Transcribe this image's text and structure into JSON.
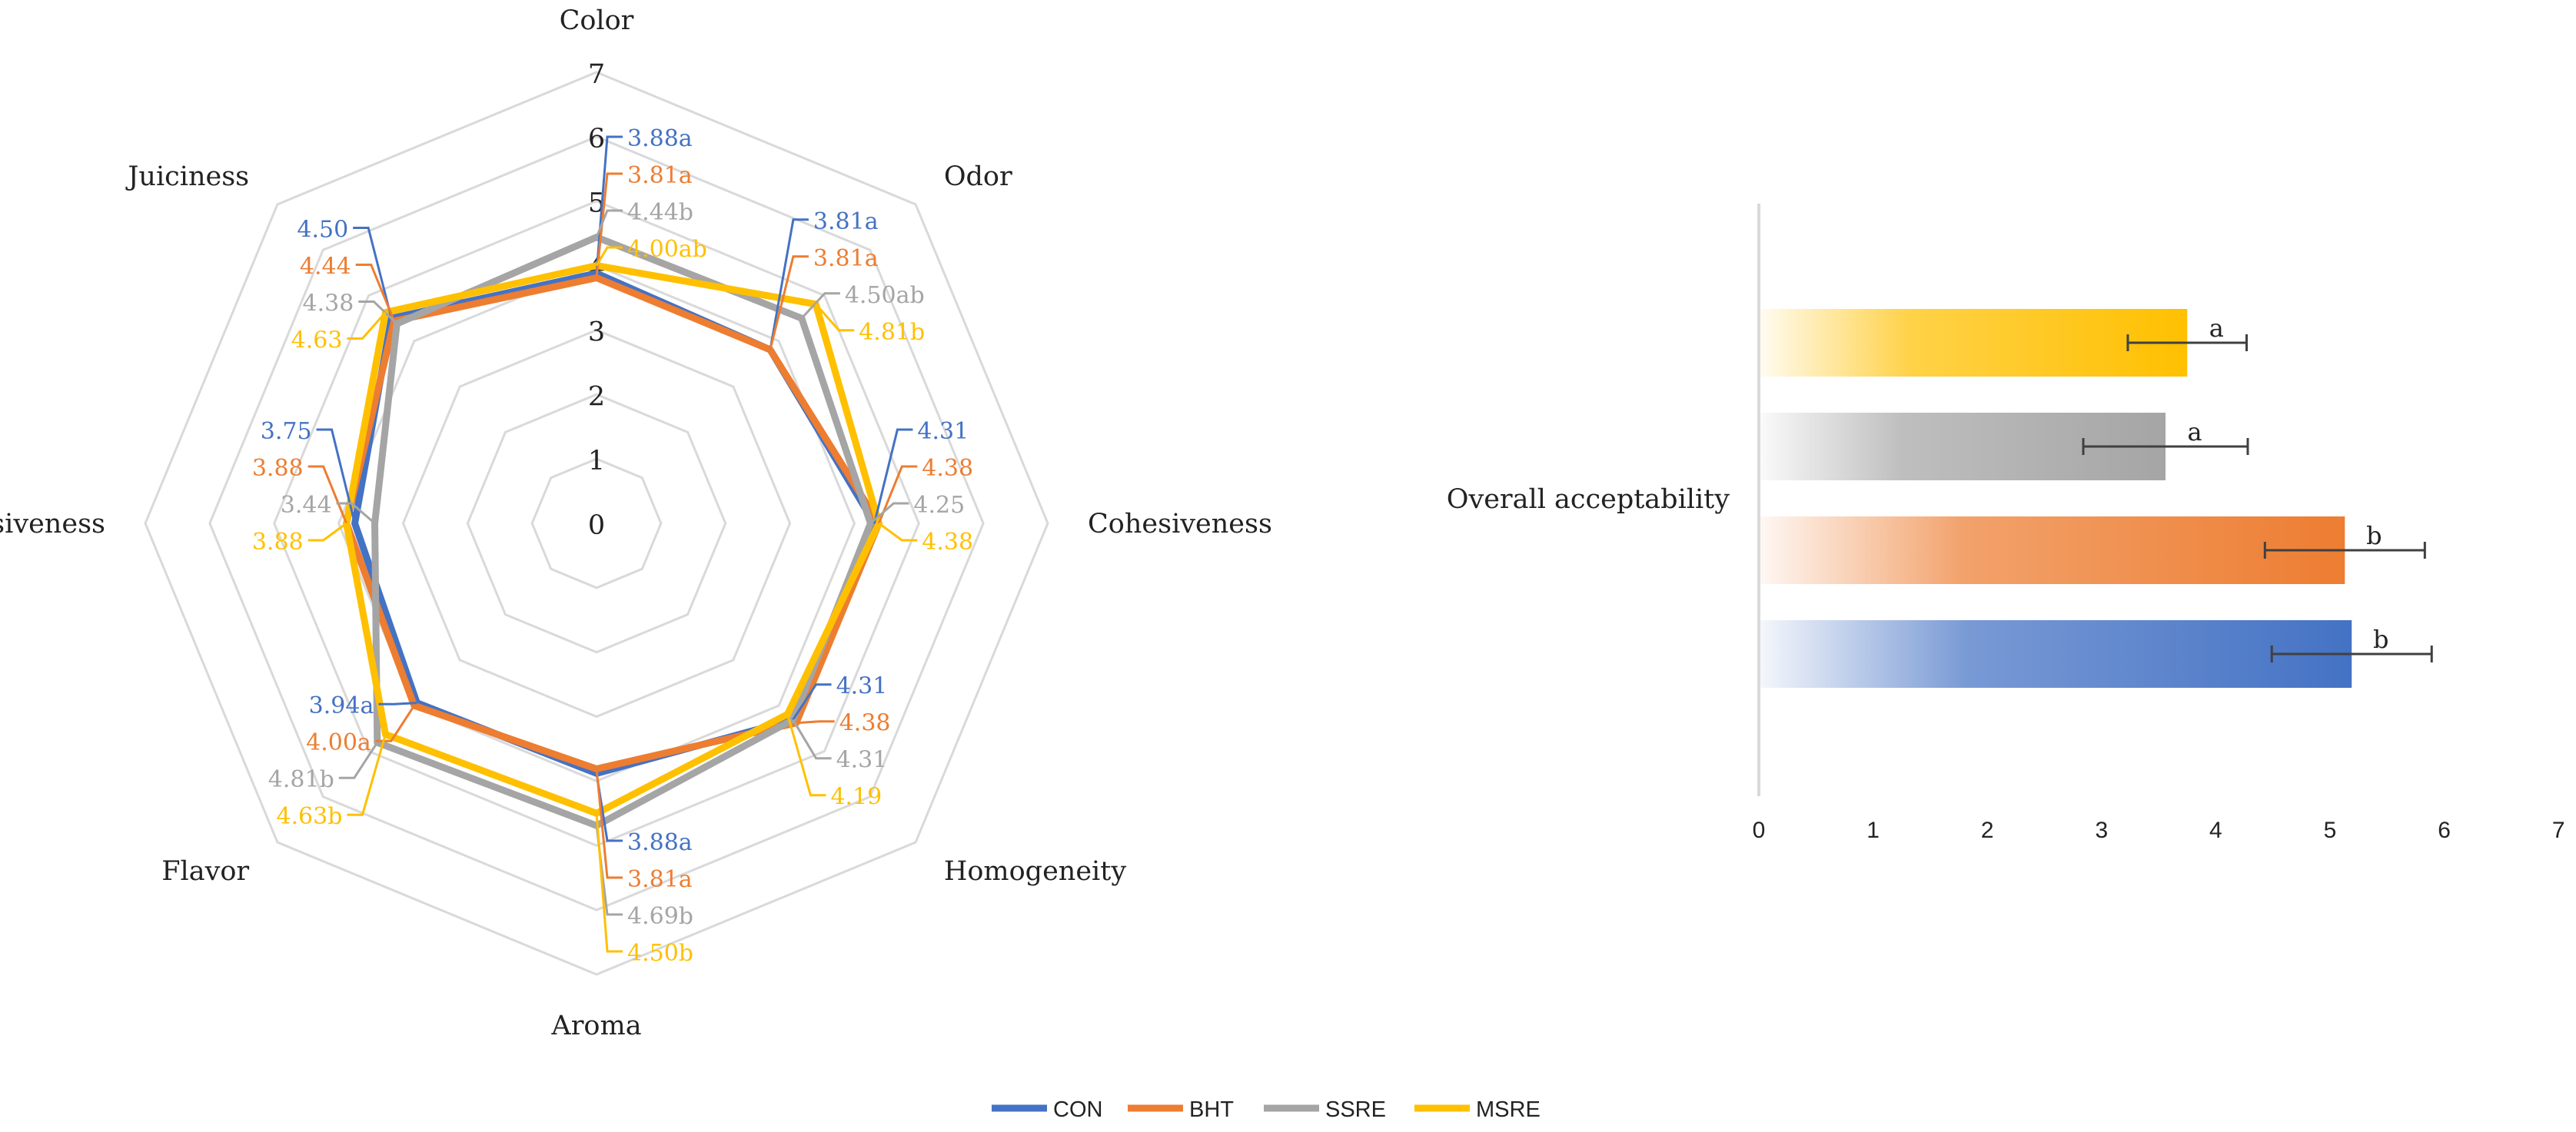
{
  "legend": [
    "CON",
    "BHT",
    "SSRE",
    "MSRE"
  ],
  "colors": {
    "CON": "#4472C4",
    "BHT": "#ED7D31",
    "SSRE": "#A5A5A5",
    "MSRE": "#FFC000",
    "grid": "#D9D9D9",
    "axis": "#BFBFBF",
    "text": "#222222",
    "errorbar": "#404040"
  },
  "chart_data": [
    {
      "type": "radar",
      "axes": [
        "Color",
        "Odor",
        "Cohesiveness",
        "Homogeneity",
        "Aroma",
        "Flavor",
        "Adhesiveness",
        "Juiciness"
      ],
      "rlim": [
        0,
        7
      ],
      "ticks": [
        "0",
        "1",
        "2",
        "3",
        "4",
        "5",
        "6",
        "7"
      ],
      "grid": true,
      "legend_position": "bottom",
      "series": [
        {
          "name": "CON",
          "values": [
            3.88,
            3.81,
            4.31,
            4.31,
            3.88,
            3.94,
            3.75,
            4.5
          ],
          "labels": [
            "3.88a",
            "3.81a",
            "4.31",
            "4.31",
            "3.88a",
            "3.94a",
            "3.75",
            "4.50"
          ]
        },
        {
          "name": "BHT",
          "values": [
            3.81,
            3.81,
            4.38,
            4.38,
            3.81,
            4.0,
            3.88,
            4.44
          ],
          "labels": [
            "3.81a",
            "3.81a",
            "4.38",
            "4.38",
            "3.81a",
            "4.00a",
            "3.88",
            "4.44"
          ]
        },
        {
          "name": "SSRE",
          "values": [
            4.44,
            4.5,
            4.25,
            4.31,
            4.69,
            4.81,
            3.44,
            4.38
          ],
          "labels": [
            "4.44b",
            "4.50ab",
            "4.25",
            "4.31",
            "4.69b",
            "4.81b",
            "3.44",
            "4.38"
          ]
        },
        {
          "name": "MSRE",
          "values": [
            4.0,
            4.81,
            4.38,
            4.19,
            4.5,
            4.63,
            3.88,
            4.63
          ],
          "labels": [
            "4.00ab",
            "4.81b",
            "4.38",
            "4.19",
            "4.50b",
            "4.63b",
            "3.88",
            "4.63"
          ]
        }
      ]
    },
    {
      "type": "bar",
      "orientation": "horizontal",
      "category_label": "Overall acceptability",
      "xlim": [
        0,
        7
      ],
      "ticks": [
        "0",
        "1",
        "2",
        "3",
        "4",
        "5",
        "6",
        "7"
      ],
      "series": [
        {
          "name": "MSRE",
          "value": 3.75,
          "error": 0.52,
          "letter": "a"
        },
        {
          "name": "SSRE",
          "value": 3.56,
          "error": 0.72,
          "letter": "a"
        },
        {
          "name": "BHT",
          "value": 5.13,
          "error": 0.7,
          "letter": "b"
        },
        {
          "name": "CON",
          "value": 5.19,
          "error": 0.7,
          "letter": "b"
        }
      ]
    }
  ]
}
